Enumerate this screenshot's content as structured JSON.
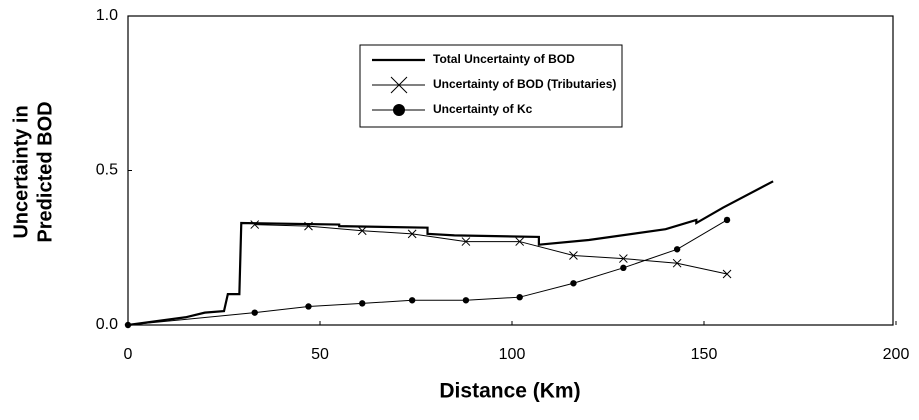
{
  "chart_data": {
    "type": "line",
    "xlabel": "Distance (Km)",
    "ylabel": [
      "Uncertainty in",
      "Predicted BOD"
    ],
    "xlim": [
      0,
      200
    ],
    "xticks": [
      0,
      50,
      100,
      150,
      200
    ],
    "ylim": [
      0,
      1
    ],
    "yticks": [
      {
        "value": 0,
        "label": "0.0"
      },
      0.5,
      {
        "value": 1,
        "label": "1.0"
      }
    ],
    "series": [
      {
        "name": "Total Uncertainty of BOD",
        "color": "#000000",
        "marker": "none",
        "x": [
          0,
          15,
          20,
          25,
          26,
          29,
          29.5,
          55,
          55,
          78,
          78,
          85,
          107,
          107,
          120,
          140,
          148,
          148,
          155,
          168
        ],
        "values": [
          0,
          0.025,
          0.04,
          0.045,
          0.1,
          0.1,
          0.33,
          0.325,
          0.32,
          0.315,
          0.295,
          0.29,
          0.285,
          0.26,
          0.275,
          0.31,
          0.34,
          0.33,
          0.38,
          0.465
        ]
      },
      {
        "name": "Uncertainty of BOD (Tributaries)",
        "color": "#000000",
        "marker": "cross",
        "x": [
          33,
          47,
          61,
          74,
          88,
          102,
          116,
          129,
          143,
          156
        ],
        "values": [
          0.325,
          0.32,
          0.305,
          0.295,
          0.27,
          0.27,
          0.225,
          0.215,
          0.2,
          0.165
        ]
      },
      {
        "name": "Uncertainty of Kc",
        "color": "#000000",
        "marker": "dot",
        "x": [
          0,
          33,
          47,
          61,
          74,
          88,
          102,
          116,
          129,
          143,
          156
        ],
        "values": [
          0,
          0.04,
          0.06,
          0.07,
          0.08,
          0.08,
          0.09,
          0.135,
          0.185,
          0.245,
          0.34
        ]
      }
    ]
  }
}
